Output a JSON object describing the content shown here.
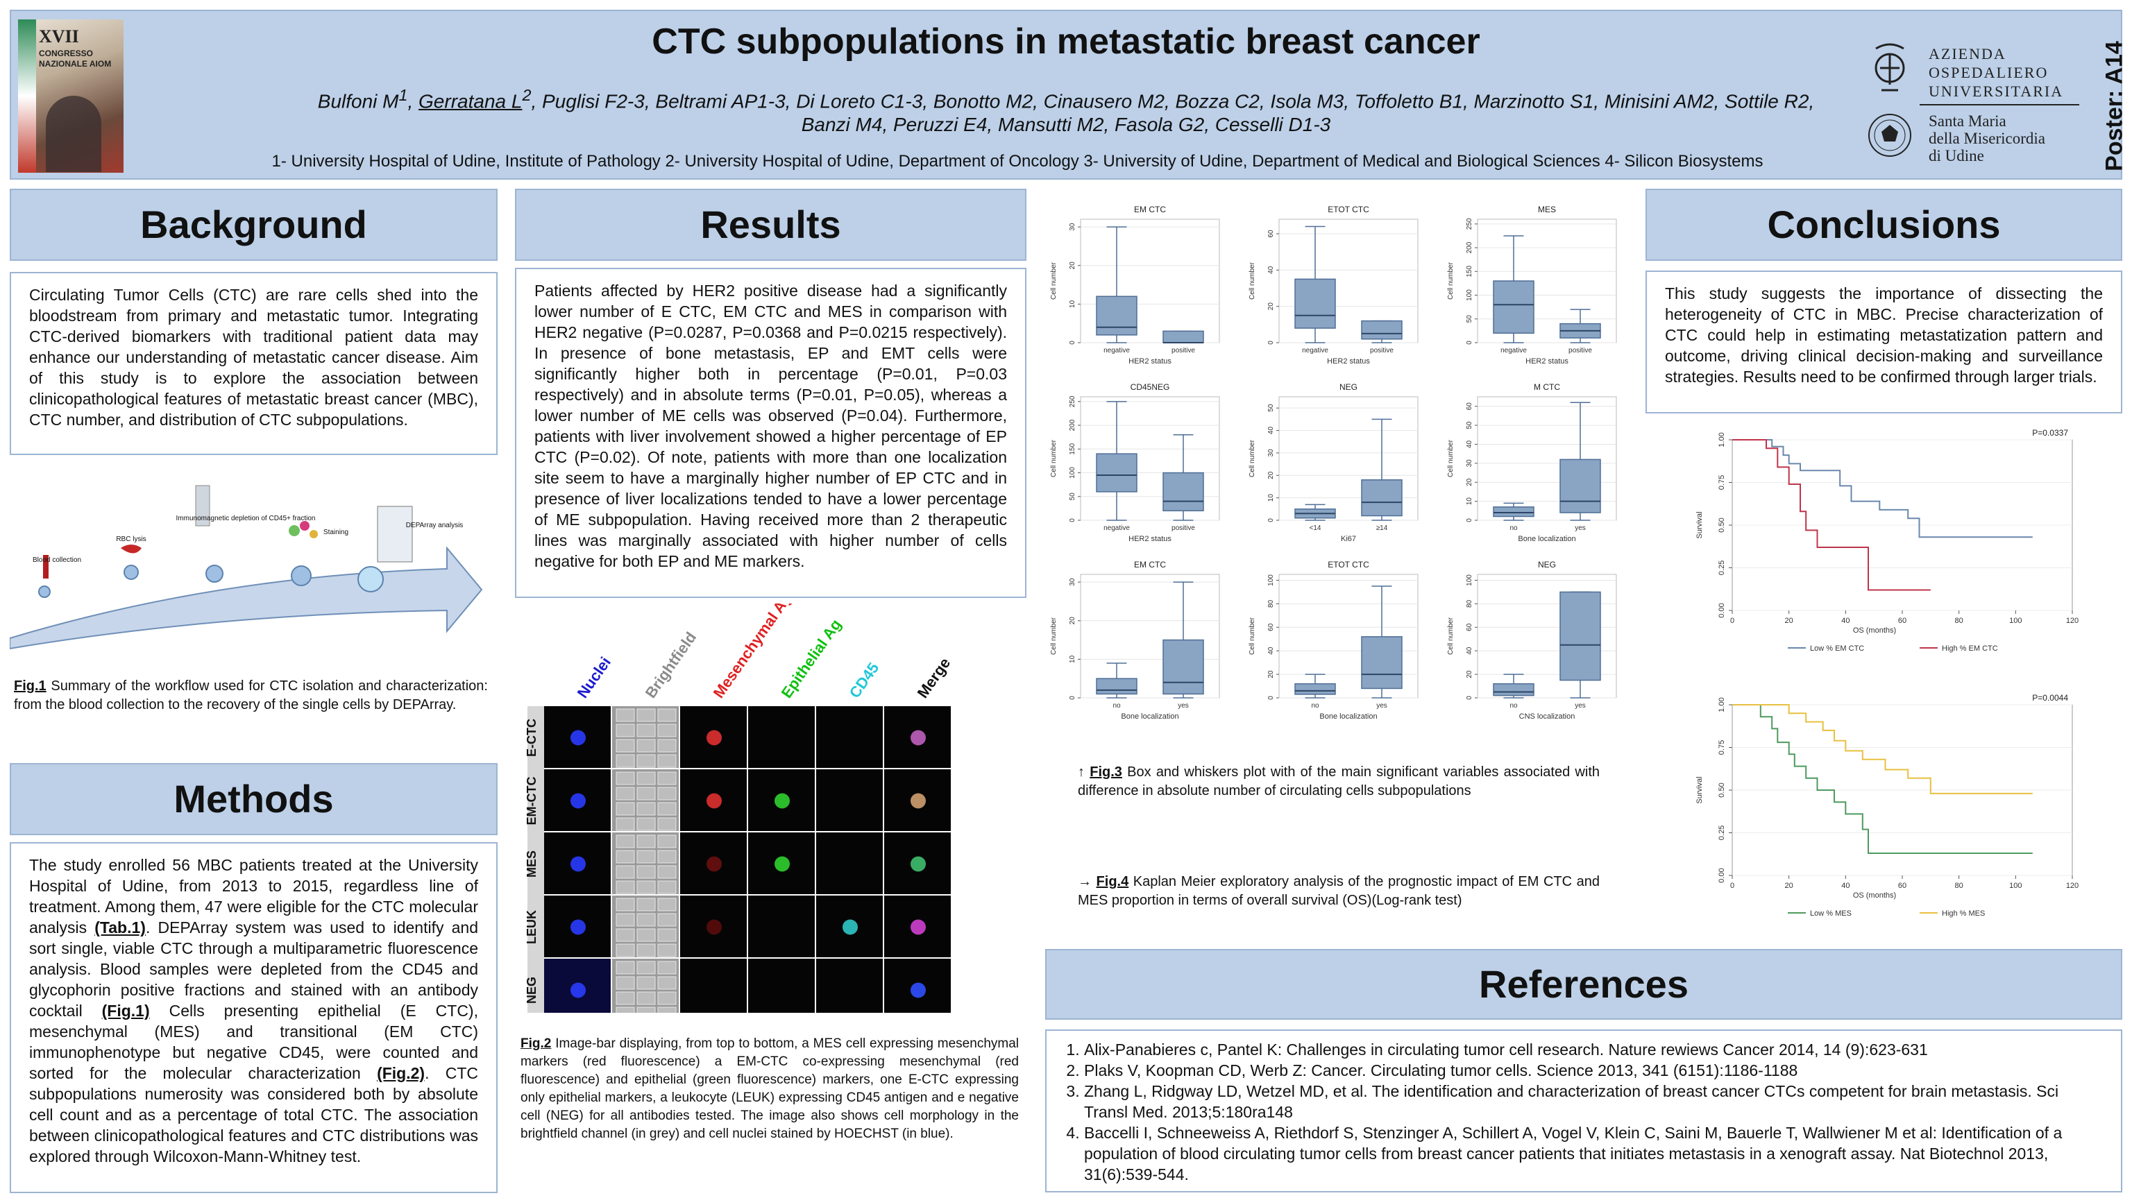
{
  "header": {
    "title": "CTC subpopulations in metastatic breast cancer",
    "cover": {
      "roman": "XVII",
      "text": "CONGRESSO NAZIONALE AIOM"
    },
    "authors_a": "Bulfoni M",
    "authors_a_sup": "1",
    "authors_u": "Gerratana L",
    "authors_u_sup": "2",
    "authors_b": ", Puglisi F2-3, Beltrami AP1-3, Di Loreto C1-3, Bonotto M2, Cinausero M2, Bozza C2, Isola M3, Toffoletto B1, Marzinotto S1, Minisini AM2, Sottile R2,",
    "authors_c": "Banzi M4, Peruzzi E4, Mansutti M2, Fasola G2, Cesselli D1-3",
    "affiliations": "1- University Hospital of Udine, Institute of Pathology   2- University Hospital of Udine, Department of Oncology   3- University of Udine, Department of Medical and Biological Sciences   4- Silicon Biosystems",
    "hospital_name": [
      "AZIENDA",
      "OSPEDALIERO",
      "UNIVERSITARIA"
    ],
    "hospital_sub": [
      "Santa Maria",
      "della Misericordia",
      "di Udine"
    ],
    "poster_code": "Poster: A14"
  },
  "background": {
    "heading": "Background",
    "text": "Circulating Tumor Cells (CTC) are rare cells shed into the bloodstream from primary and metastatic tumor. Integrating CTC-derived biomarkers with traditional patient data may enhance our understanding of metastatic cancer disease. Aim of this study is to explore the association between clinicopathological features of metastatic breast cancer (MBC), CTC number, and distribution of CTC subpopulations."
  },
  "fig1": {
    "steps": [
      "Blood collection",
      "RBC lysis",
      "Immunomagnetic depletion of CD45+ fraction",
      "Staining",
      "DEPArray analysis"
    ],
    "caption_label": "Fig.1",
    "caption": " Summary of the workflow used for CTC isolation and characterization: from the blood collection to the recovery of the single cells by DEPArray."
  },
  "methods": {
    "heading": "Methods",
    "p1": "The study enrolled 56 MBC patients treated at the University Hospital of Udine, from 2013 to 2015, regardless line of treatment. Among them, 47 were eligible for the CTC molecular analysis ",
    "ref1": "(Tab.1)",
    "p2": ". DEPArray system was used to identify and sort single, viable CTC through a multiparametric fluorescence analysis. Blood samples were depleted from the CD45 and glycophorin positive fractions and stained with an antibody cocktail ",
    "ref2": "(Fig.1)",
    "p3": " Cells presenting epithelial (E CTC), mesenchymal (MES) and transitional (EM CTC) immunophenotype but negative CD45, were counted and sorted for the molecular characterization ",
    "ref3": "(Fig.2)",
    "p4": ". CTC subpopulations numerosity was considered both by absolute cell count and as a percentage of total CTC. The association between clinicopathological features and CTC distributions was explored through Wilcoxon-Mann-Whitney test."
  },
  "results": {
    "heading": "Results",
    "text": "Patients affected by HER2 positive disease had a significantly lower number of E CTC, EM CTC and MES in comparison with HER2 negative (P=0.0287, P=0.0368 and P=0.0215 respectively). In presence of bone metastasis, EP and EMT cells were significantly higher both in percentage (P=0.01, P=0.03 respectively) and in absolute terms (P=0.01, P=0.05), whereas a lower number of ME cells was observed (P=0.04). Furthermore, patients with liver involvement showed a higher percentage of EP CTC (P=0.02). Of note, patients with more than one localization site seem to have a marginally higher number of EP CTC and in presence of liver localizations tended to have a lower percentage of ME subpopulation. Having received more than 2 therapeutic lines was marginally associated with higher number of cells negative for both EP and ME markers."
  },
  "fig2": {
    "columns": [
      "Nuclei",
      "Brightfield",
      "Mesenchymal Ag",
      "Epithelial Ag",
      "CD45",
      "Merge"
    ],
    "column_colors": [
      "#1a1ad0",
      "#8a8a8a",
      "#e02020",
      "#10c010",
      "#20c8d8",
      "#111111"
    ],
    "rows": [
      "E-CTC",
      "EM-CTC",
      "MES",
      "LEUK",
      "NEG"
    ],
    "caption_label": "Fig.2",
    "caption": " Image-bar displaying, from top to bottom, a MES cell expressing mesenchymal markers  (red fluorescence) a EM-CTC co-expressing mesenchymal (red fluorescence) and epithelial (green fluorescence) markers, one E-CTC expressing only epithelial markers, a leukocyte (LEUK) expressing CD45 antigen and e negative cell (NEG) for all antibodies tested. The image also shows cell morphology in the brightfield channel (in grey) and cell nuclei stained by HOECHST (in blue)."
  },
  "chart_data": [
    {
      "type": "boxplot",
      "title": "EM CTC",
      "xlabel": "HER2 status",
      "ylabel": "Cell number",
      "ylim": [
        0,
        32
      ],
      "yticks": [
        0,
        10,
        20,
        30
      ],
      "categories": [
        "negative",
        "positive"
      ],
      "boxes": [
        {
          "min": 0,
          "q1": 2,
          "median": 4,
          "q3": 12,
          "max": 30
        },
        {
          "min": 0,
          "q1": 0,
          "median": 0,
          "q3": 3,
          "max": 3
        }
      ]
    },
    {
      "type": "boxplot",
      "title": "ETOT CTC",
      "xlabel": "HER2 status",
      "ylabel": "Cell number",
      "ylim": [
        0,
        68
      ],
      "yticks": [
        0,
        20,
        40,
        60
      ],
      "categories": [
        "negative",
        "positive"
      ],
      "boxes": [
        {
          "min": 0,
          "q1": 8,
          "median": 15,
          "q3": 35,
          "max": 64
        },
        {
          "min": 0,
          "q1": 2,
          "median": 5,
          "q3": 12,
          "max": 12
        }
      ]
    },
    {
      "type": "boxplot",
      "title": "MES",
      "xlabel": "HER2 status",
      "ylabel": "Cell number",
      "ylim": [
        0,
        260
      ],
      "yticks": [
        0,
        50,
        100,
        150,
        200,
        250
      ],
      "categories": [
        "negative",
        "positive"
      ],
      "boxes": [
        {
          "min": 0,
          "q1": 20,
          "median": 80,
          "q3": 130,
          "max": 225
        },
        {
          "min": 0,
          "q1": 10,
          "median": 25,
          "q3": 40,
          "max": 70
        }
      ]
    },
    {
      "type": "boxplot",
      "title": "CD45NEG",
      "xlabel": "HER2 status",
      "ylabel": "Cell number",
      "ylim": [
        0,
        260
      ],
      "yticks": [
        0,
        50,
        100,
        150,
        200,
        250
      ],
      "categories": [
        "negative",
        "positive"
      ],
      "boxes": [
        {
          "min": 0,
          "q1": 60,
          "median": 95,
          "q3": 140,
          "max": 250
        },
        {
          "min": 0,
          "q1": 20,
          "median": 40,
          "q3": 100,
          "max": 180
        }
      ]
    },
    {
      "type": "boxplot",
      "title": "NEG",
      "xlabel": "Ki67",
      "ylabel": "Cell number",
      "ylim": [
        0,
        55
      ],
      "yticks": [
        0,
        10,
        20,
        30,
        40,
        50
      ],
      "categories": [
        "<14",
        "≥14"
      ],
      "boxes": [
        {
          "min": 0,
          "q1": 1,
          "median": 3,
          "q3": 5,
          "max": 7
        },
        {
          "min": 0,
          "q1": 2,
          "median": 8,
          "q3": 18,
          "max": 45
        }
      ]
    },
    {
      "type": "boxplot",
      "title": "M CTC",
      "xlabel": "Bone localization",
      "ylabel": "Cell number",
      "ylim": [
        0,
        65
      ],
      "yticks": [
        0,
        10,
        20,
        30,
        40,
        50,
        60
      ],
      "categories": [
        "no",
        "yes"
      ],
      "boxes": [
        {
          "min": 0,
          "q1": 2,
          "median": 4,
          "q3": 7,
          "max": 9
        },
        {
          "min": 0,
          "q1": 4,
          "median": 10,
          "q3": 32,
          "max": 62
        }
      ]
    },
    {
      "type": "boxplot",
      "title": "EM CTC",
      "xlabel": "Bone localization",
      "ylabel": "Cell number",
      "ylim": [
        0,
        32
      ],
      "yticks": [
        0,
        10,
        20,
        30
      ],
      "categories": [
        "no",
        "yes"
      ],
      "boxes": [
        {
          "min": 0,
          "q1": 1,
          "median": 2,
          "q3": 5,
          "max": 9
        },
        {
          "min": 0,
          "q1": 1,
          "median": 4,
          "q3": 15,
          "max": 30
        }
      ]
    },
    {
      "type": "boxplot",
      "title": "ETOT CTC",
      "xlabel": "Bone localization",
      "ylabel": "Cell number",
      "ylim": [
        0,
        105
      ],
      "yticks": [
        0,
        20,
        40,
        60,
        80,
        100
      ],
      "categories": [
        "no",
        "yes"
      ],
      "boxes": [
        {
          "min": 0,
          "q1": 3,
          "median": 6,
          "q3": 12,
          "max": 20
        },
        {
          "min": 0,
          "q1": 8,
          "median": 20,
          "q3": 52,
          "max": 95
        }
      ]
    },
    {
      "type": "boxplot",
      "title": "NEG",
      "xlabel": "CNS localization",
      "ylabel": "Cell number",
      "ylim": [
        0,
        105
      ],
      "yticks": [
        0,
        20,
        40,
        60,
        80,
        100
      ],
      "categories": [
        "no",
        "yes"
      ],
      "boxes": [
        {
          "min": 0,
          "q1": 2,
          "median": 5,
          "q3": 12,
          "max": 20
        },
        {
          "min": 0,
          "q1": 15,
          "median": 45,
          "q3": 90,
          "max": 90
        }
      ]
    },
    {
      "type": "line",
      "subtype": "kaplan-meier",
      "xlabel": "OS (months)",
      "ylabel": "Survival",
      "pvalue": "P=0.0337",
      "xlim": [
        0,
        120
      ],
      "xticks": [
        0,
        20,
        40,
        60,
        80,
        100,
        120
      ],
      "ylim": [
        0,
        1
      ],
      "yticks": [
        0.0,
        0.25,
        0.5,
        0.75,
        1.0
      ],
      "series": [
        {
          "name": "Low % EM CTC",
          "color": "#6a87ad",
          "points": [
            [
              0,
              1
            ],
            [
              14,
              1
            ],
            [
              14,
              0.96
            ],
            [
              18,
              0.96
            ],
            [
              18,
              0.91
            ],
            [
              20,
              0.91
            ],
            [
              20,
              0.86
            ],
            [
              24,
              0.86
            ],
            [
              24,
              0.82
            ],
            [
              38,
              0.82
            ],
            [
              38,
              0.73
            ],
            [
              42,
              0.73
            ],
            [
              42,
              0.64
            ],
            [
              52,
              0.64
            ],
            [
              52,
              0.59
            ],
            [
              62,
              0.59
            ],
            [
              62,
              0.54
            ],
            [
              66,
              0.54
            ],
            [
              66,
              0.43
            ],
            [
              106,
              0.43
            ]
          ]
        },
        {
          "name": "High % EM CTC",
          "color": "#c0344b",
          "points": [
            [
              0,
              1
            ],
            [
              12,
              1
            ],
            [
              12,
              0.95
            ],
            [
              16,
              0.95
            ],
            [
              16,
              0.84
            ],
            [
              20,
              0.84
            ],
            [
              20,
              0.74
            ],
            [
              24,
              0.74
            ],
            [
              24,
              0.58
            ],
            [
              26,
              0.58
            ],
            [
              26,
              0.47
            ],
            [
              30,
              0.47
            ],
            [
              30,
              0.37
            ],
            [
              48,
              0.37
            ],
            [
              48,
              0.12
            ],
            [
              70,
              0.12
            ]
          ]
        }
      ]
    },
    {
      "type": "line",
      "subtype": "kaplan-meier",
      "xlabel": "OS (months)",
      "ylabel": "Survival",
      "pvalue": "P=0.0044",
      "xlim": [
        0,
        120
      ],
      "xticks": [
        0,
        20,
        40,
        60,
        80,
        100,
        120
      ],
      "ylim": [
        0,
        1
      ],
      "yticks": [
        0.0,
        0.25,
        0.5,
        0.75,
        1.0
      ],
      "series": [
        {
          "name": "Low % MES",
          "color": "#4e9a5e",
          "points": [
            [
              0,
              1
            ],
            [
              10,
              1
            ],
            [
              10,
              0.93
            ],
            [
              14,
              0.93
            ],
            [
              14,
              0.86
            ],
            [
              16,
              0.86
            ],
            [
              16,
              0.78
            ],
            [
              20,
              0.78
            ],
            [
              20,
              0.71
            ],
            [
              22,
              0.71
            ],
            [
              22,
              0.64
            ],
            [
              26,
              0.64
            ],
            [
              26,
              0.57
            ],
            [
              30,
              0.57
            ],
            [
              30,
              0.5
            ],
            [
              36,
              0.5
            ],
            [
              36,
              0.43
            ],
            [
              40,
              0.43
            ],
            [
              40,
              0.36
            ],
            [
              46,
              0.36
            ],
            [
              46,
              0.27
            ],
            [
              48,
              0.27
            ],
            [
              48,
              0.13
            ],
            [
              106,
              0.13
            ]
          ]
        },
        {
          "name": "High % MES",
          "color": "#e8c040",
          "points": [
            [
              0,
              1
            ],
            [
              20,
              1
            ],
            [
              20,
              0.95
            ],
            [
              26,
              0.95
            ],
            [
              26,
              0.9
            ],
            [
              32,
              0.9
            ],
            [
              32,
              0.85
            ],
            [
              36,
              0.85
            ],
            [
              36,
              0.79
            ],
            [
              40,
              0.79
            ],
            [
              40,
              0.73
            ],
            [
              46,
              0.73
            ],
            [
              46,
              0.68
            ],
            [
              54,
              0.68
            ],
            [
              54,
              0.62
            ],
            [
              62,
              0.62
            ],
            [
              62,
              0.57
            ],
            [
              70,
              0.57
            ],
            [
              70,
              0.48
            ],
            [
              106,
              0.48
            ]
          ]
        }
      ]
    }
  ],
  "fig3": {
    "label": "Fig.3",
    "caption": " Box and whiskers plot with of the main significant variables associated with difference in absolute number of circulating cells subpopulations",
    "arrow": "↑"
  },
  "fig4": {
    "label": "Fig.4",
    "caption": " Kaplan Meier exploratory analysis of the prognostic impact of EM CTC and MES proportion in terms of overall survival (OS)(Log-rank  test)",
    "arrow": "→"
  },
  "conclusions": {
    "heading": "Conclusions",
    "text": "This study suggests the importance of dissecting the heterogeneity of CTC in MBC. Precise characterization of CTC could help in estimating metastatization pattern and outcome, driving clinical decision-making and surveillance strategies. Results need to be confirmed through larger trials."
  },
  "references": {
    "heading": "References",
    "items": [
      "Alix-Panabieres c, Pantel K: Challenges in circulating tumor cell research. Nature rewiews Cancer 2014, 14 (9):623-631",
      "Plaks V, Koopman CD, Werb Z: Cancer. Circulating tumor cells. Science 2013, 341 (6151):1186-1188",
      "Zhang L, Ridgway LD, Wetzel MD, et al. The identification and characterization of breast cancer CTCs competent for brain metastasis. Sci Transl Med. 2013;5:180ra148",
      "Baccelli I, Schneeweiss A, Riethdorf S, Stenzinger A, Schillert A, Vogel V, Klein C, Saini M, Bauerle T, Wallwiener M et al: Identification of a population of blood circulating tumor cells from breast cancer patients that initiates metastasis in a xenograft assay. Nat Biotechnol 2013, 31(6):539-544."
    ]
  },
  "colors": {
    "panel": "#bdd0e8",
    "border": "#9db4d3",
    "box_fill": "#8aa4c4",
    "box_stroke": "#4f6e95"
  }
}
